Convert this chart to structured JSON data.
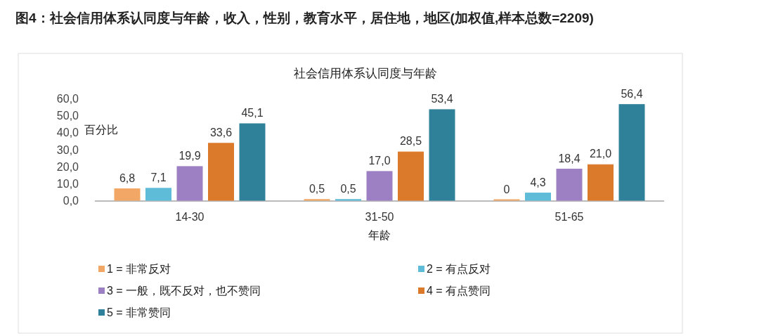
{
  "chart_data": {
    "type": "bar",
    "title": "图4：社会信用体系认同度与年龄，收入，性别，教育水平，居住地，地区(加权值,样本总数=2209)",
    "subtitle": "社会信用体系认同度与年龄",
    "xlabel": "年龄",
    "ylabel": "百分比",
    "categories": [
      "14-30",
      "31-50",
      "51-65"
    ],
    "series": [
      {
        "name": "1 = 非常反对",
        "color": "#f2a766",
        "values": [
          6.8,
          0.5,
          0
        ],
        "value_labels": [
          "6,8",
          "0,5",
          "0"
        ]
      },
      {
        "name": "2 = 有点反对",
        "color": "#5fbcd8",
        "values": [
          7.1,
          0.5,
          4.3
        ],
        "value_labels": [
          "7,1",
          "0,5",
          "4,3"
        ]
      },
      {
        "name": "3 = 一般，既不反对，也不赞同",
        "color": "#9d80c4",
        "values": [
          19.9,
          17.0,
          18.4
        ],
        "value_labels": [
          "19,9",
          "17,0",
          "18,4"
        ]
      },
      {
        "name": "4 = 有点赞同",
        "color": "#dc7a2c",
        "values": [
          33.6,
          28.5,
          21.0
        ],
        "value_labels": [
          "33,6",
          "28,5",
          "21,0"
        ]
      },
      {
        "name": "5 = 非常赞同",
        "color": "#2f8199",
        "values": [
          45.1,
          53.4,
          56.4
        ],
        "value_labels": [
          "45,1",
          "53,4",
          "56,4"
        ]
      }
    ],
    "ylim": [
      0,
      60
    ],
    "yticks": [
      {
        "value": 0,
        "label": "0,0"
      },
      {
        "value": 10,
        "label": "10,0"
      },
      {
        "value": 20,
        "label": "20,0"
      },
      {
        "value": 30,
        "label": "30,0"
      },
      {
        "value": 40,
        "label": "40,0"
      },
      {
        "value": 50,
        "label": "50,0"
      },
      {
        "value": 60,
        "label": "60,0"
      }
    ],
    "grid": false,
    "legend": "bottom"
  }
}
